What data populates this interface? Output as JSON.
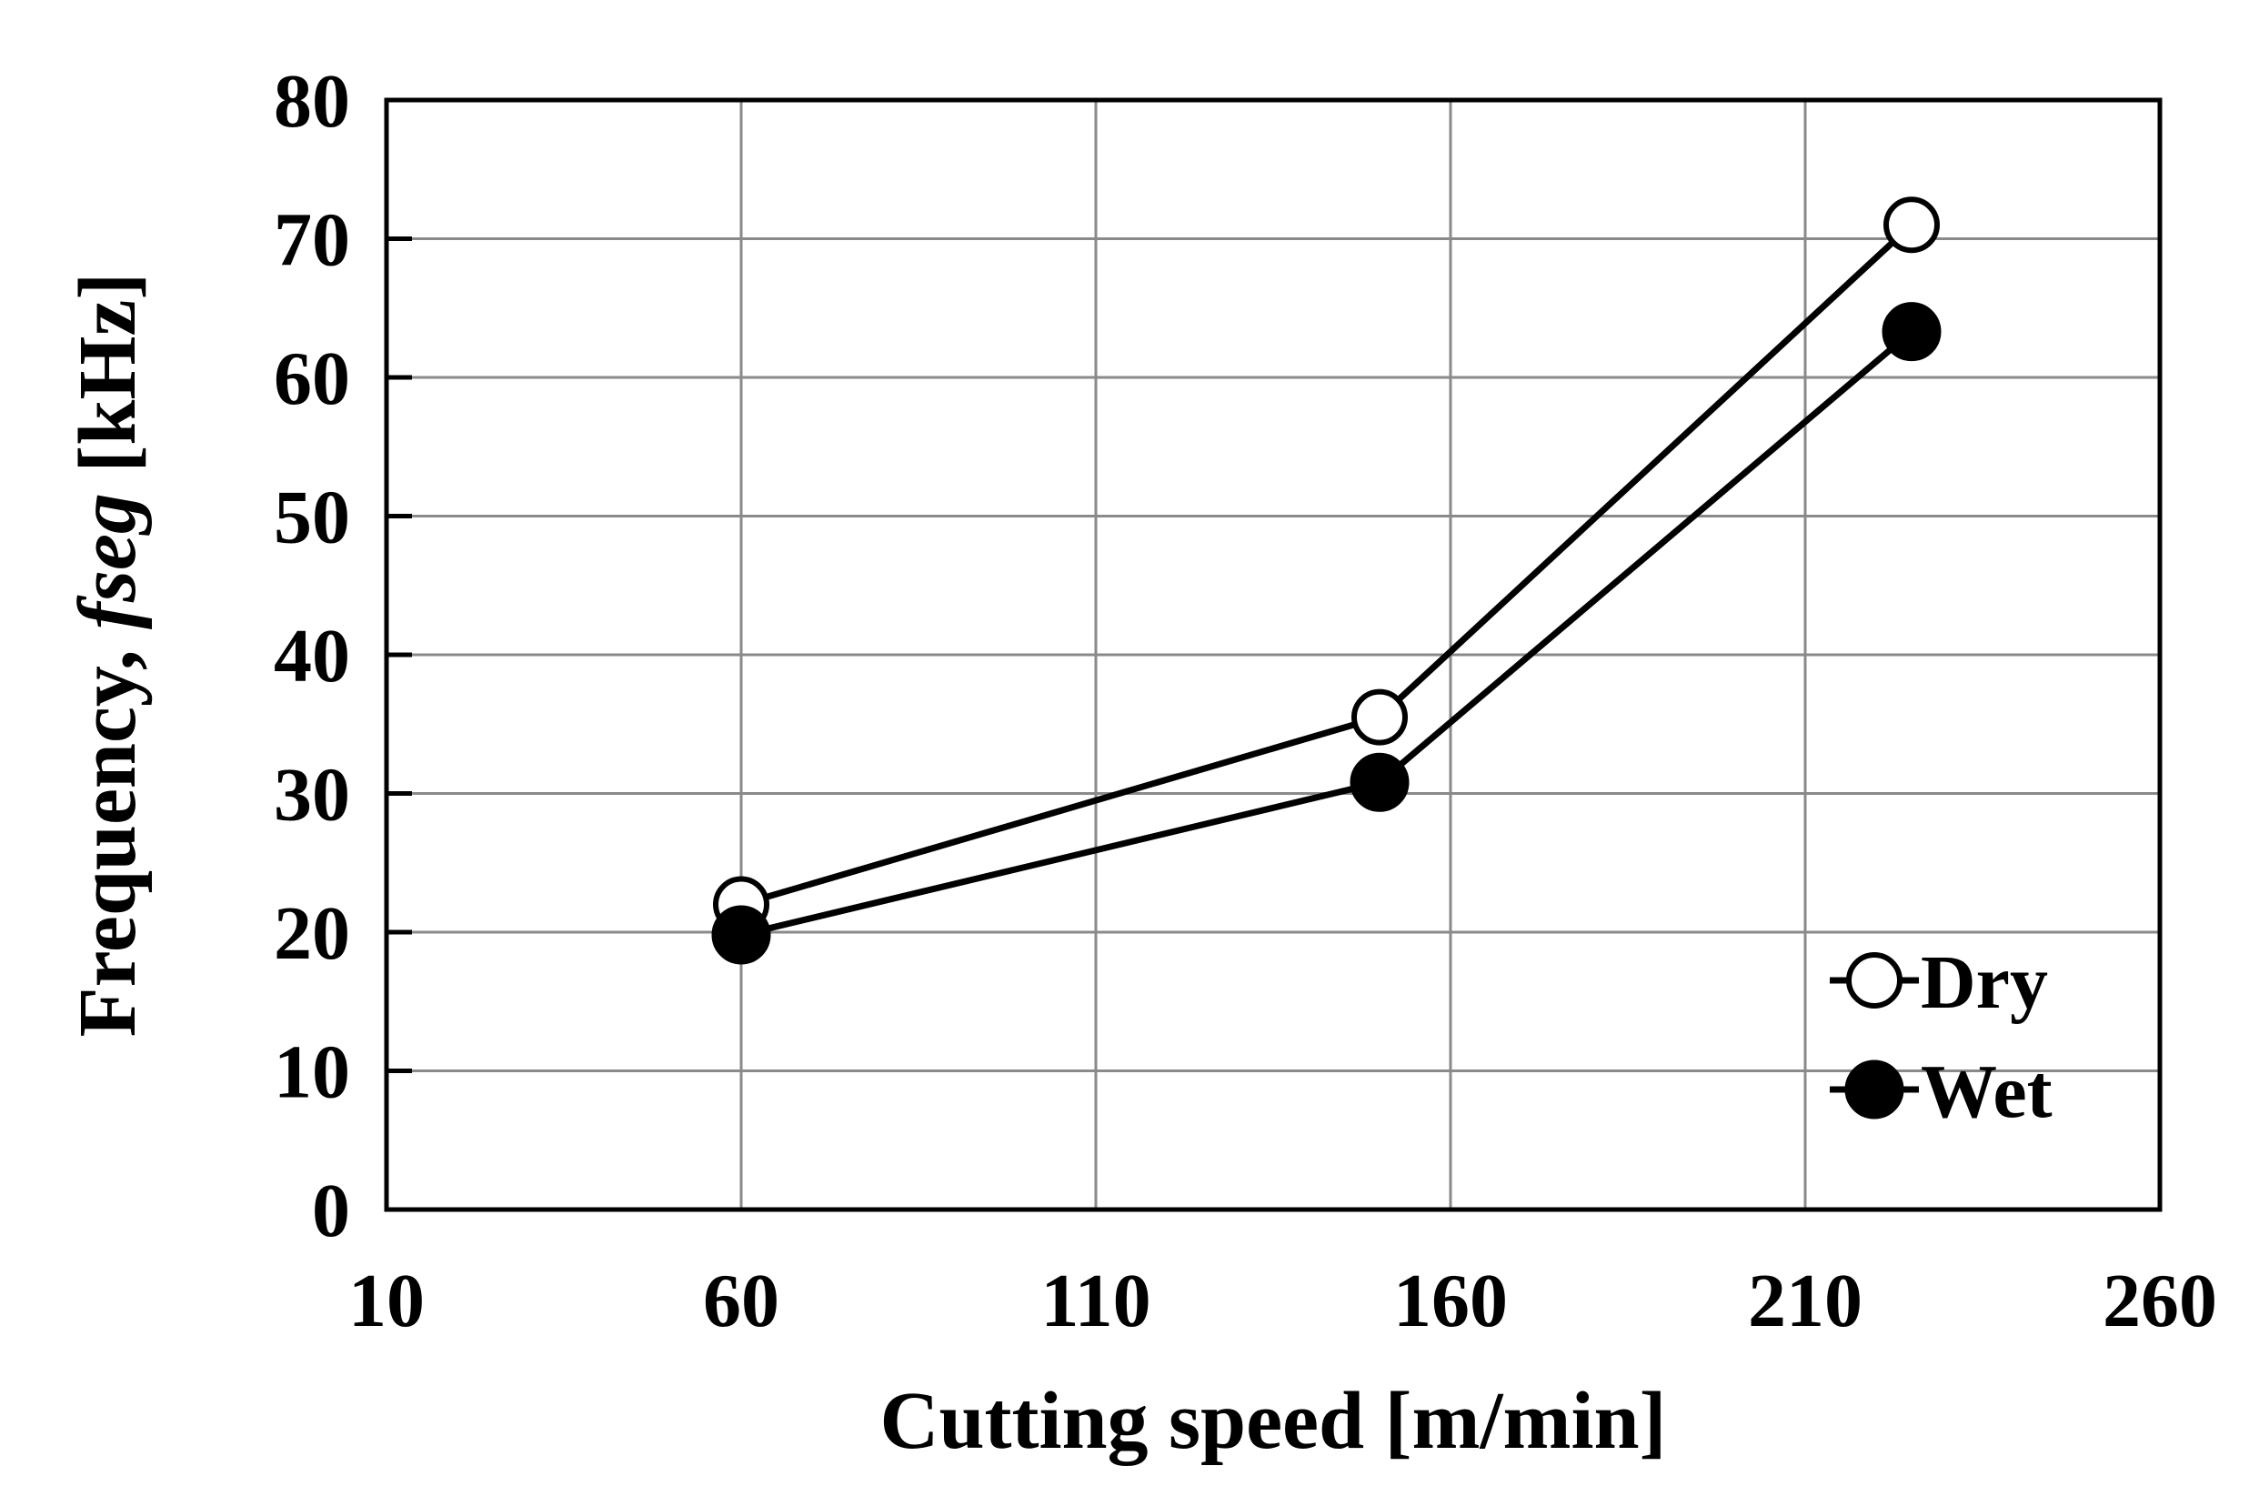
{
  "chart_data": {
    "type": "line",
    "xlabel": "Cutting speed [m/min]",
    "ylabel_prefix": "Frequency, ",
    "ylabel_italic": "fseg",
    "ylabel_suffix": " [kHz]",
    "xlim": [
      10,
      260
    ],
    "ylim": [
      0,
      80
    ],
    "xticks": [
      10,
      60,
      110,
      160,
      210,
      260
    ],
    "yticks": [
      0,
      10,
      20,
      30,
      40,
      50,
      60,
      70,
      80
    ],
    "grid": true,
    "legend_position": "bottom-right",
    "series": [
      {
        "name": "Dry",
        "marker": "open-circle",
        "x": [
          60,
          150,
          225
        ],
        "y": [
          22,
          35.5,
          71
        ]
      },
      {
        "name": "Wet",
        "marker": "filled-circle",
        "x": [
          60,
          150,
          225
        ],
        "y": [
          19.8,
          30.8,
          63.3
        ]
      }
    ]
  }
}
